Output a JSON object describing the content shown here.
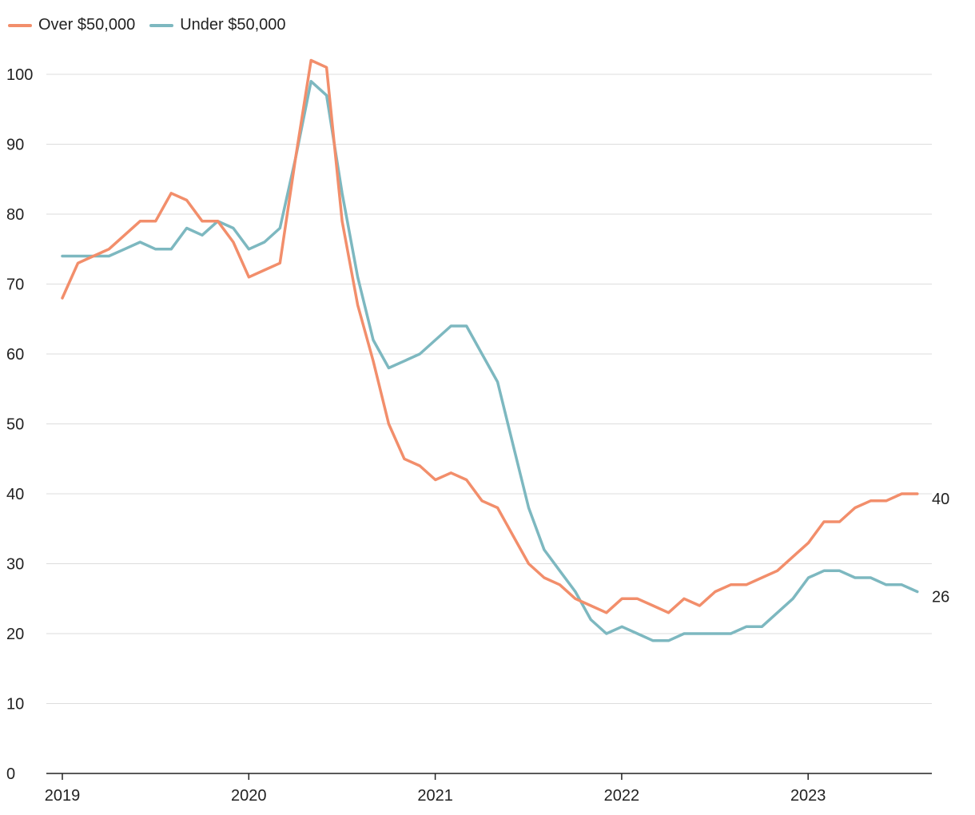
{
  "chart_data": {
    "type": "line",
    "title": "",
    "xlabel": "",
    "ylabel": "",
    "ylim": [
      0,
      100
    ],
    "yticks": [
      0,
      10,
      20,
      30,
      40,
      50,
      60,
      70,
      80,
      90,
      100
    ],
    "xlim": [
      2019,
      2023.6
    ],
    "xticks": [
      "2019",
      "2020",
      "2021",
      "2022",
      "2023"
    ],
    "grid": true,
    "legend_position": "top-left",
    "series": [
      {
        "name": "Over $50,000",
        "color": "#f28e6b",
        "end_label": "40",
        "values": [
          68,
          73,
          74,
          75,
          77,
          79,
          79,
          83,
          82,
          79,
          79,
          76,
          71,
          72,
          73,
          88,
          102,
          101,
          79,
          67,
          59,
          50,
          45,
          44,
          42,
          43,
          42,
          39,
          38,
          34,
          30,
          28,
          27,
          25,
          24,
          23,
          25,
          25,
          24,
          23,
          25,
          24,
          26,
          27,
          27,
          28,
          29,
          31,
          33,
          36,
          36,
          38,
          39,
          39,
          40,
          40
        ]
      },
      {
        "name": "Under $50,000",
        "color": "#7db8c0",
        "end_label": "26",
        "values": [
          74,
          74,
          74,
          74,
          75,
          76,
          75,
          75,
          78,
          77,
          79,
          78,
          75,
          76,
          78,
          88,
          99,
          97,
          83,
          71,
          62,
          58,
          59,
          60,
          62,
          64,
          64,
          60,
          56,
          47,
          38,
          32,
          29,
          26,
          22,
          20,
          21,
          20,
          19,
          19,
          20,
          20,
          20,
          20,
          21,
          21,
          23,
          25,
          28,
          29,
          29,
          28,
          28,
          27,
          27,
          26
        ]
      }
    ]
  }
}
